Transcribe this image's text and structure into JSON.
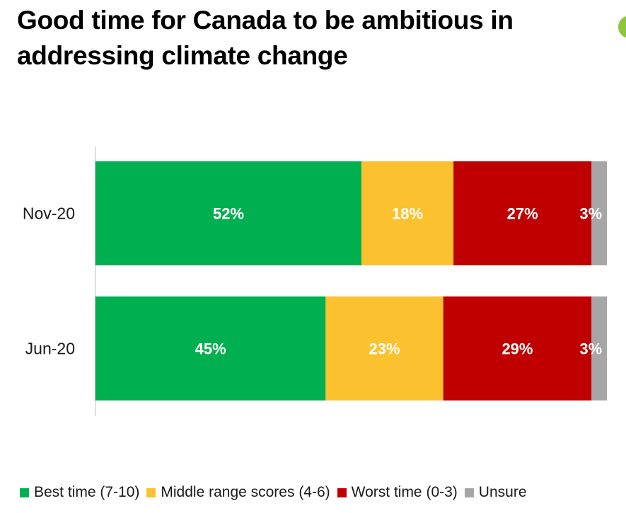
{
  "chart_data": {
    "type": "bar",
    "orientation": "horizontal",
    "stacked": true,
    "title": "Good time for Canada to be ambitious in addressing climate change",
    "categories": [
      "Nov-20",
      "Jun-20"
    ],
    "series": [
      {
        "name": "Best time (7-10)",
        "values": [
          52,
          45
        ],
        "labels": [
          "52%",
          "45%"
        ],
        "color": "#00b050"
      },
      {
        "name": "Middle range scores (4-6)",
        "values": [
          18,
          23
        ],
        "labels": [
          "18%",
          "23%"
        ],
        "color": "#fcc12e"
      },
      {
        "name": "Worst time (0-3)",
        "values": [
          27,
          29
        ],
        "labels": [
          "27%",
          "29%"
        ],
        "color": "#c00000"
      },
      {
        "name": "Unsure",
        "values": [
          3,
          3
        ],
        "labels": [
          "3%",
          "3%"
        ],
        "color": "#a6a6a6"
      }
    ],
    "xlim": [
      0,
      100
    ],
    "grid": false,
    "legend_position": "bottom"
  },
  "decor": {
    "corner_circle_color": "#8cc63f"
  }
}
